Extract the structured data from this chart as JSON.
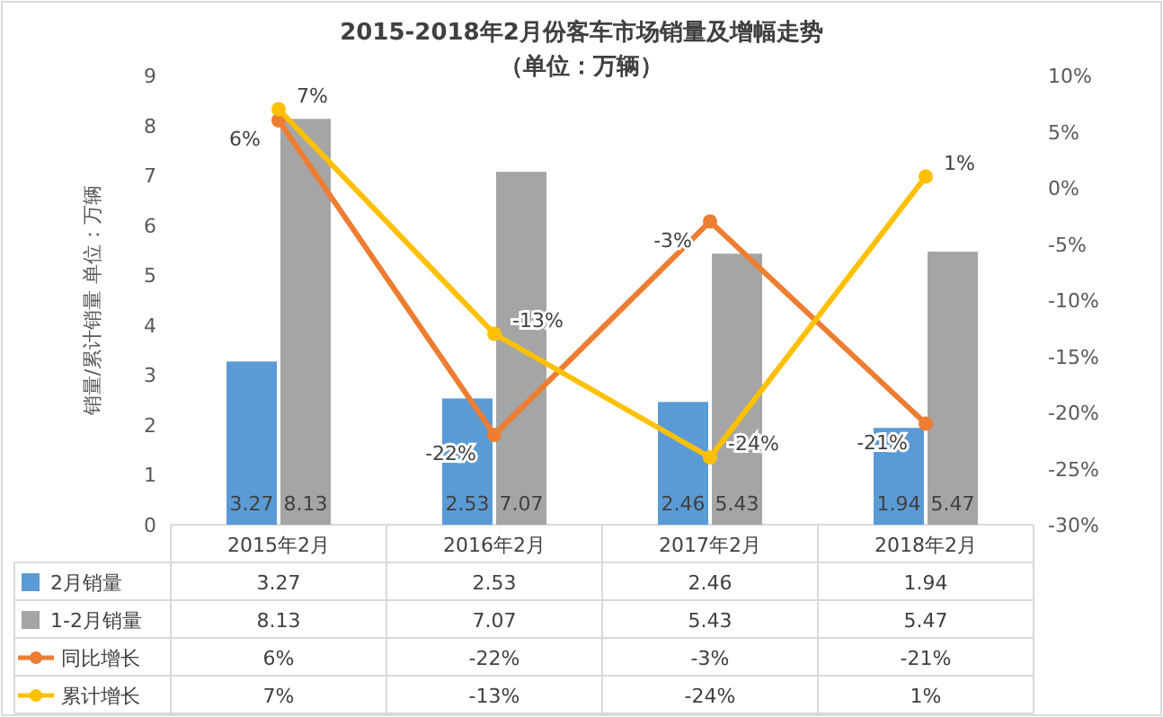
{
  "chart_data": {
    "type": "bar",
    "title": "2015-2018年2月份客车市场销量及增幅走势",
    "subtitle": "（单位：万辆）",
    "ylabel": "销量/累计销量 单位：万辆",
    "categories": [
      "2015年2月",
      "2016年2月",
      "2017年2月",
      "2018年2月"
    ],
    "series": [
      {
        "name": "2月销量",
        "color": "#5b9bd5",
        "values": [
          3.27,
          2.53,
          2.46,
          1.94
        ],
        "value_labels": [
          "3.27",
          "2.53",
          "2.46",
          "1.94"
        ]
      },
      {
        "name": "1-2月销量",
        "color": "#a5a5a5",
        "values": [
          8.13,
          7.07,
          5.43,
          5.47
        ],
        "value_labels": [
          "8.13",
          "7.07",
          "5.43",
          "5.47"
        ]
      },
      {
        "name": "同比增长",
        "type": "line",
        "axis": "y2",
        "color": "#ed7d31",
        "values": [
          6,
          -22,
          -3,
          -21
        ],
        "value_labels": [
          "6%",
          "-22%",
          "-3%",
          "-21%"
        ]
      },
      {
        "name": "累计增长",
        "type": "line",
        "axis": "y2",
        "color": "#ffc000",
        "values": [
          7,
          -13,
          -24,
          1
        ],
        "value_labels": [
          "7%",
          "-13%",
          "-24%",
          "1%"
        ]
      }
    ],
    "ylim": [
      0,
      9
    ],
    "yticks": [
      0,
      1,
      2,
      3,
      4,
      5,
      6,
      7,
      8,
      9
    ],
    "y2lim": [
      -30,
      10
    ],
    "y2ticks": [
      {
        "value": -30,
        "label": "-30%"
      },
      {
        "value": -25,
        "label": "-25%"
      },
      {
        "value": -20,
        "label": "-20%"
      },
      {
        "value": -15,
        "label": "-15%"
      },
      {
        "value": -10,
        "label": "-10%"
      },
      {
        "value": -5,
        "label": "-5%"
      },
      {
        "value": 0,
        "label": "0%"
      },
      {
        "value": 5,
        "label": "5%"
      },
      {
        "value": 10,
        "label": "10%"
      }
    ],
    "legend": "bottom",
    "marker": "circle",
    "grid": false
  }
}
